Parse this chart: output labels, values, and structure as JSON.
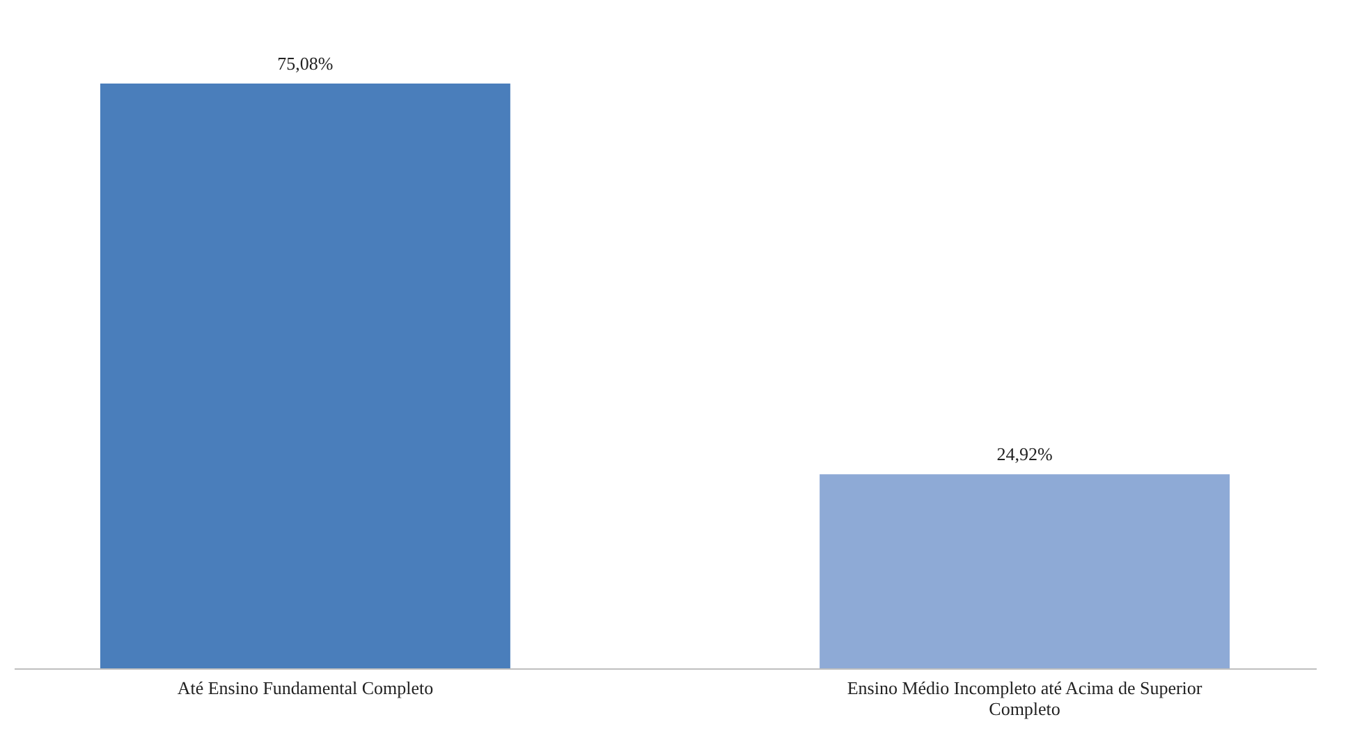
{
  "chart_data": {
    "type": "bar",
    "categories": [
      "Até Ensino Fundamental Completo",
      "Ensino Médio Incompleto até Acima de Superior Completo"
    ],
    "values": [
      75.08,
      24.92
    ],
    "colors": [
      "#4a7ebb",
      "#8eaad6"
    ],
    "value_labels": [
      "75,08%",
      "24,92%"
    ]
  }
}
